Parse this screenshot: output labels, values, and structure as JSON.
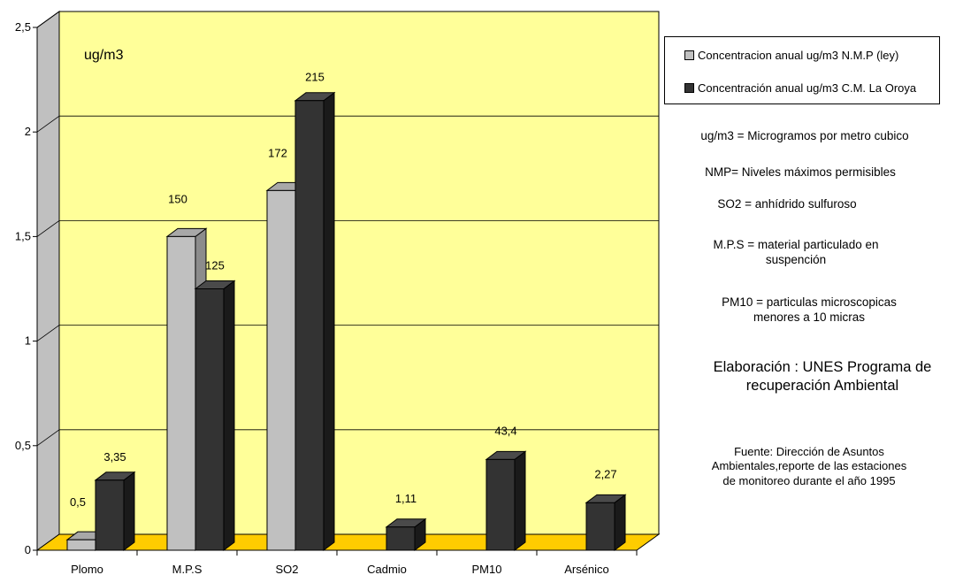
{
  "chart_data": {
    "type": "bar",
    "title": "",
    "xlabel": "",
    "ylabel": "",
    "unit_label": "ug/m3",
    "categories": [
      "Plomo",
      "M.P.S",
      "SO2",
      "Cadmio",
      "PM10",
      "Arsénico"
    ],
    "ylim": [
      0,
      2.5
    ],
    "yticks": [
      "0",
      "0,5",
      "1",
      "1,5",
      "2",
      "2,5"
    ],
    "ytick_values": [
      0,
      0.5,
      1,
      1.5,
      2,
      2.5
    ],
    "grid": true,
    "legend_position": "right",
    "series": [
      {
        "name": "Concentracion anual ug/m3 N.M.P (ley)",
        "color": "#c0c0c0",
        "values": [
          0.05,
          1.5,
          1.72,
          null,
          null,
          null
        ],
        "labels": [
          "0,5",
          "150",
          "172",
          "",
          "",
          ""
        ]
      },
      {
        "name": "Concentración  anual ug/m3 C.M. La Oroya",
        "color": "#333333",
        "values": [
          0.335,
          1.25,
          2.15,
          0.111,
          0.434,
          0.227
        ],
        "labels": [
          "3,35",
          "125",
          "215",
          "1,11",
          "43,4",
          "2,27"
        ]
      }
    ],
    "colors": {
      "plot_area": "#ffff99",
      "floor": "#ffcc00",
      "wall_side": "#c0c0c0"
    }
  },
  "notes": {
    "units": "ug/m3 = Microgramos por metro cubico",
    "nmp": "NMP= Niveles máximos permisibles",
    "so2": "SO2 = anhídrido sulfuroso",
    "mps": "M.P.S = material particulado en\nsuspención",
    "pm10": "PM10 = particulas microscopicas\nmenores a  10 micras",
    "elaboracion": "Elaboración : UNES  Programa de\nrecuperación Ambiental",
    "fuente": "Fuente: Dirección de Asuntos\nAmbientales,reporte de las estaciones\nde monitoreo durante el año 1995"
  }
}
